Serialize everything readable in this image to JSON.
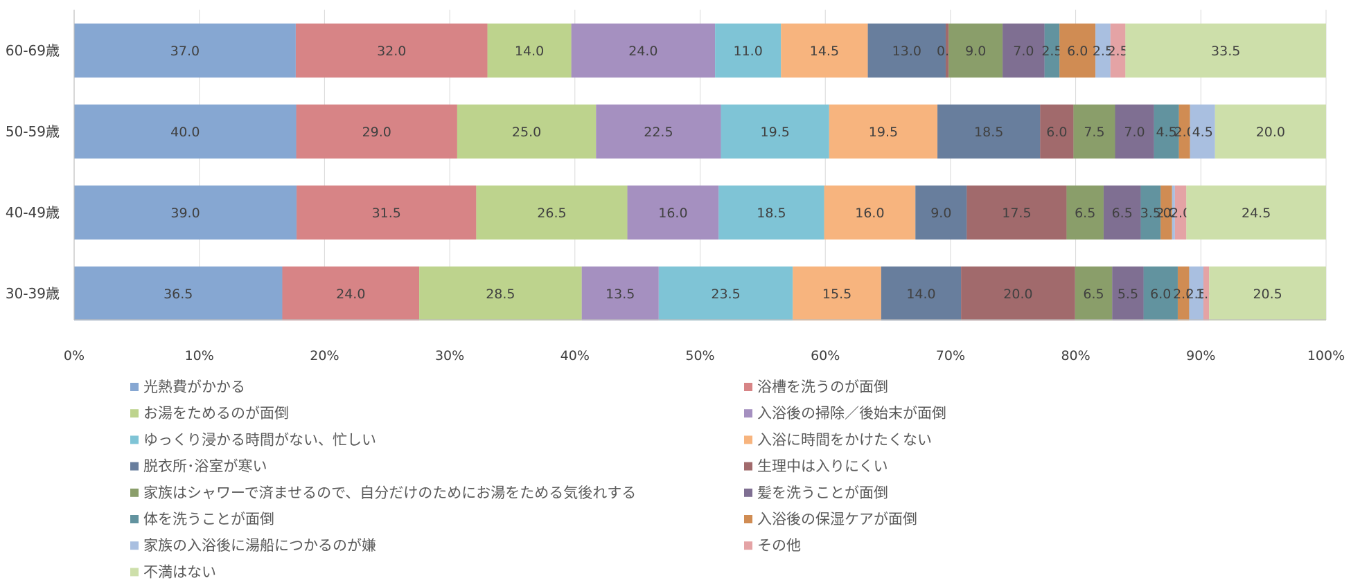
{
  "chart_data": {
    "type": "bar",
    "orientation": "horizontal",
    "stacked": "percent",
    "title": "",
    "xlabel": "",
    "ylabel": "",
    "xlim": [
      0,
      100
    ],
    "grid": true,
    "legend_position": "bottom",
    "tick_labels": [
      "0%",
      "10%",
      "20%",
      "30%",
      "40%",
      "50%",
      "60%",
      "70%",
      "80%",
      "90%",
      "100%"
    ],
    "categories": [
      "60-69歳",
      "50-59歳",
      "40-49歳",
      "30-39歳"
    ],
    "series": [
      {
        "name": "光熱費がかかる",
        "color": "#86a7d2",
        "values": [
          37.0,
          40.0,
          39.0,
          36.5
        ]
      },
      {
        "name": "浴槽を洗うのが面倒",
        "color": "#d78486",
        "values": [
          32.0,
          29.0,
          31.5,
          24.0
        ]
      },
      {
        "name": "お湯をためるのが面倒",
        "color": "#bdd38d",
        "values": [
          14.0,
          25.0,
          26.5,
          28.5
        ]
      },
      {
        "name": "入浴後の掃除／後始末が面倒",
        "color": "#a590c0",
        "values": [
          24.0,
          22.5,
          16.0,
          13.5
        ]
      },
      {
        "name": "ゆっくり浸かる時間がない、忙しい",
        "color": "#7fc4d6",
        "values": [
          11.0,
          19.5,
          18.5,
          23.5
        ]
      },
      {
        "name": "入浴に時間をかけたくない",
        "color": "#f7b47e",
        "values": [
          14.5,
          19.5,
          16.0,
          15.5
        ]
      },
      {
        "name": "脱衣所･浴室が寒い",
        "color": "#687e9d",
        "values": [
          13.0,
          18.5,
          9.0,
          14.0
        ]
      },
      {
        "name": "生理中は入りにくい",
        "color": "#a16a6c",
        "values": [
          0.5,
          6.0,
          17.5,
          20.0
        ]
      },
      {
        "name": "家族はシャワーで済ませるので、自分だけのためにお湯をためる気後れする",
        "color": "#8a9e6a",
        "values": [
          9.0,
          7.5,
          6.5,
          6.5
        ]
      },
      {
        "name": "髪を洗うことが面倒",
        "color": "#7f6f92",
        "values": [
          7.0,
          7.0,
          6.5,
          5.5
        ]
      },
      {
        "name": "体を洗うことが面倒",
        "color": "#62939f",
        "values": [
          2.5,
          4.5,
          3.5,
          6.0
        ]
      },
      {
        "name": "入浴後の保湿ケアが面倒",
        "color": "#d08c53",
        "values": [
          6.0,
          2.0,
          2.0,
          2.0
        ]
      },
      {
        "name": "家族の入浴後に湯船につかるのが嫌",
        "color": "#a9bfe0",
        "values": [
          2.5,
          4.5,
          0.5,
          2.5
        ]
      },
      {
        "name": "その他",
        "color": "#e4a3a5",
        "values": [
          2.5,
          0.0,
          2.0,
          1.0
        ]
      },
      {
        "name": "不満はない",
        "color": "#cddfaa",
        "values": [
          33.5,
          20.0,
          24.5,
          20.5
        ]
      }
    ]
  }
}
